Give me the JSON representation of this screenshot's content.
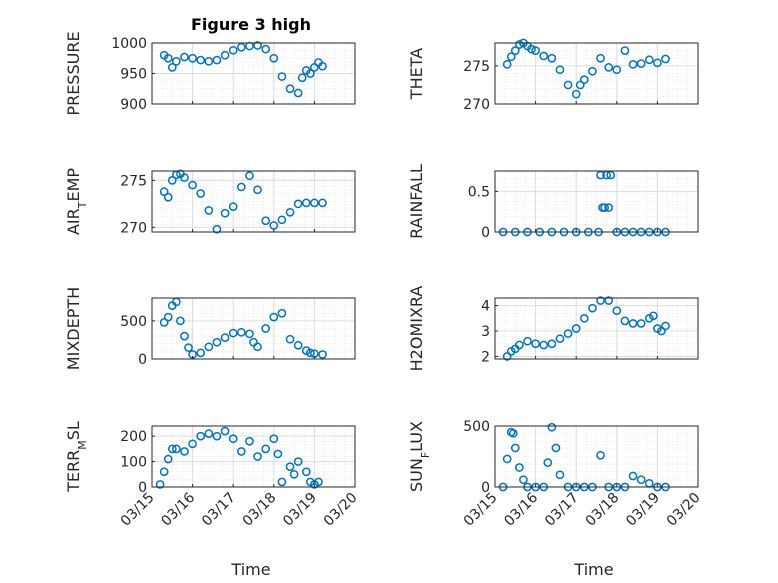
{
  "figure": {
    "title": "Figure 3 high",
    "xlabel": "Time",
    "x_ticks": [
      "03/15",
      "03/16",
      "03/17",
      "03/18",
      "03/19",
      "03/20"
    ],
    "marker_color": "#0072BD"
  },
  "chart_data": [
    {
      "type": "scatter",
      "title": "Figure 3 high",
      "ylabel": "PRESSURE",
      "ylim": [
        900,
        1000
      ],
      "yticks": [
        900,
        950,
        1000
      ],
      "xlim": [
        15,
        20
      ],
      "grid": true,
      "x": [
        15.3,
        15.4,
        15.5,
        15.6,
        15.8,
        16.0,
        16.2,
        16.4,
        16.6,
        16.8,
        17.0,
        17.2,
        17.4,
        17.6,
        17.8,
        18.0,
        18.2,
        18.4,
        18.6,
        18.7,
        18.8,
        18.9,
        19.0,
        19.1,
        19.2
      ],
      "y": [
        980,
        975,
        960,
        970,
        977,
        975,
        972,
        970,
        972,
        980,
        988,
        993,
        995,
        996,
        990,
        975,
        945,
        925,
        918,
        943,
        955,
        950,
        960,
        968,
        962
      ]
    },
    {
      "type": "scatter",
      "ylabel": "THETA",
      "ylim": [
        270,
        278
      ],
      "yticks": [
        270,
        275
      ],
      "xlim": [
        15,
        20
      ],
      "grid": true,
      "x": [
        15.3,
        15.4,
        15.5,
        15.6,
        15.7,
        15.8,
        15.9,
        16.0,
        16.2,
        16.4,
        16.6,
        16.8,
        17.0,
        17.1,
        17.2,
        17.4,
        17.6,
        17.8,
        18.0,
        18.2,
        18.4,
        18.6,
        18.8,
        19.0,
        19.2
      ],
      "y": [
        275.2,
        276.2,
        277.0,
        277.8,
        278.0,
        277.6,
        277.2,
        277.0,
        276.3,
        276.0,
        274.5,
        272.5,
        271.3,
        272.5,
        273.2,
        274.3,
        276.0,
        274.8,
        274.5,
        277.0,
        275.2,
        275.3,
        275.8,
        275.4,
        275.9
      ]
    },
    {
      "type": "scatter",
      "ylabel": "AIR_TEMP",
      "ylim": [
        269.5,
        276
      ],
      "yticks": [
        270,
        275
      ],
      "xlim": [
        15,
        20
      ],
      "grid": true,
      "x": [
        15.3,
        15.4,
        15.5,
        15.6,
        15.7,
        15.8,
        16.0,
        16.2,
        16.4,
        16.6,
        16.8,
        17.0,
        17.2,
        17.4,
        17.6,
        17.8,
        18.0,
        18.2,
        18.4,
        18.6,
        18.8,
        19.0,
        19.2
      ],
      "y": [
        273.8,
        273.2,
        275.0,
        275.6,
        275.7,
        275.3,
        274.5,
        273.6,
        271.8,
        269.8,
        271.5,
        272.2,
        274.3,
        275.5,
        274.0,
        270.7,
        270.2,
        270.8,
        271.6,
        272.5,
        272.6,
        272.6,
        272.6
      ]
    },
    {
      "type": "scatter",
      "ylabel": "RAINFALL",
      "ylim": [
        0,
        0.75
      ],
      "yticks": [
        0,
        0.5
      ],
      "xlim": [
        15,
        20
      ],
      "grid": true,
      "x": [
        15.2,
        15.5,
        15.8,
        16.1,
        16.4,
        16.7,
        17.0,
        17.3,
        17.55,
        17.6,
        17.65,
        17.7,
        17.75,
        17.8,
        17.85,
        18.0,
        18.2,
        18.4,
        18.6,
        18.8,
        19.0,
        19.2
      ],
      "y": [
        0,
        0,
        0,
        0,
        0,
        0,
        0,
        0,
        0,
        0.7,
        0.3,
        0.3,
        0.7,
        0.3,
        0.7,
        0,
        0,
        0,
        0,
        0,
        0,
        0
      ]
    },
    {
      "type": "scatter",
      "ylabel": "MIXDEPTH",
      "ylim": [
        0,
        800
      ],
      "yticks": [
        0,
        500
      ],
      "xlim": [
        15,
        20
      ],
      "grid": true,
      "x": [
        15.3,
        15.4,
        15.5,
        15.6,
        15.7,
        15.8,
        15.9,
        16.0,
        16.2,
        16.4,
        16.6,
        16.8,
        17.0,
        17.2,
        17.4,
        17.5,
        17.6,
        17.8,
        18.0,
        18.2,
        18.4,
        18.6,
        18.8,
        18.9,
        19.0,
        19.2
      ],
      "y": [
        480,
        550,
        700,
        750,
        500,
        300,
        150,
        60,
        80,
        160,
        220,
        280,
        340,
        350,
        330,
        220,
        160,
        400,
        550,
        600,
        260,
        180,
        110,
        80,
        70,
        60
      ]
    },
    {
      "type": "scatter",
      "ylabel": "H2OMIXRA",
      "ylim": [
        1.9,
        4.3
      ],
      "yticks": [
        2,
        3,
        4
      ],
      "xlim": [
        15,
        20
      ],
      "grid": true,
      "x": [
        15.3,
        15.4,
        15.5,
        15.6,
        15.8,
        16.0,
        16.2,
        16.4,
        16.6,
        16.8,
        17.0,
        17.2,
        17.4,
        17.6,
        17.8,
        18.0,
        18.2,
        18.4,
        18.6,
        18.8,
        18.9,
        19.0,
        19.1,
        19.2
      ],
      "y": [
        2.0,
        2.2,
        2.3,
        2.45,
        2.6,
        2.5,
        2.45,
        2.5,
        2.7,
        2.9,
        3.1,
        3.5,
        3.9,
        4.2,
        4.2,
        3.8,
        3.4,
        3.3,
        3.3,
        3.5,
        3.6,
        3.1,
        3.0,
        3.2
      ]
    },
    {
      "type": "scatter",
      "ylabel": "TERR_MSL",
      "ylim": [
        0,
        240
      ],
      "yticks": [
        0,
        100,
        200
      ],
      "xlim": [
        15,
        20
      ],
      "grid": true,
      "x": [
        15.2,
        15.3,
        15.4,
        15.5,
        15.6,
        15.8,
        16.0,
        16.2,
        16.4,
        16.6,
        16.8,
        17.0,
        17.2,
        17.4,
        17.6,
        17.8,
        18.0,
        18.1,
        18.2,
        18.4,
        18.5,
        18.6,
        18.8,
        18.9,
        19.0,
        19.1
      ],
      "y": [
        10,
        60,
        110,
        150,
        150,
        140,
        170,
        200,
        210,
        200,
        220,
        190,
        140,
        180,
        120,
        150,
        190,
        130,
        20,
        80,
        50,
        100,
        60,
        20,
        10,
        20
      ]
    },
    {
      "type": "scatter",
      "ylabel": "SUN_FLUX",
      "ylim": [
        0,
        500
      ],
      "yticks": [
        0,
        500
      ],
      "xlim": [
        15,
        20
      ],
      "grid": true,
      "x": [
        15.2,
        15.3,
        15.4,
        15.45,
        15.5,
        15.6,
        15.7,
        15.8,
        16.0,
        16.2,
        16.3,
        16.4,
        16.5,
        16.6,
        16.8,
        17.0,
        17.2,
        17.4,
        17.6,
        17.8,
        18.0,
        18.2,
        18.4,
        18.6,
        18.8,
        19.0,
        19.2
      ],
      "y": [
        0,
        230,
        450,
        440,
        320,
        160,
        60,
        0,
        0,
        0,
        200,
        490,
        320,
        100,
        0,
        0,
        0,
        0,
        260,
        0,
        0,
        0,
        90,
        60,
        30,
        0,
        0
      ]
    }
  ]
}
